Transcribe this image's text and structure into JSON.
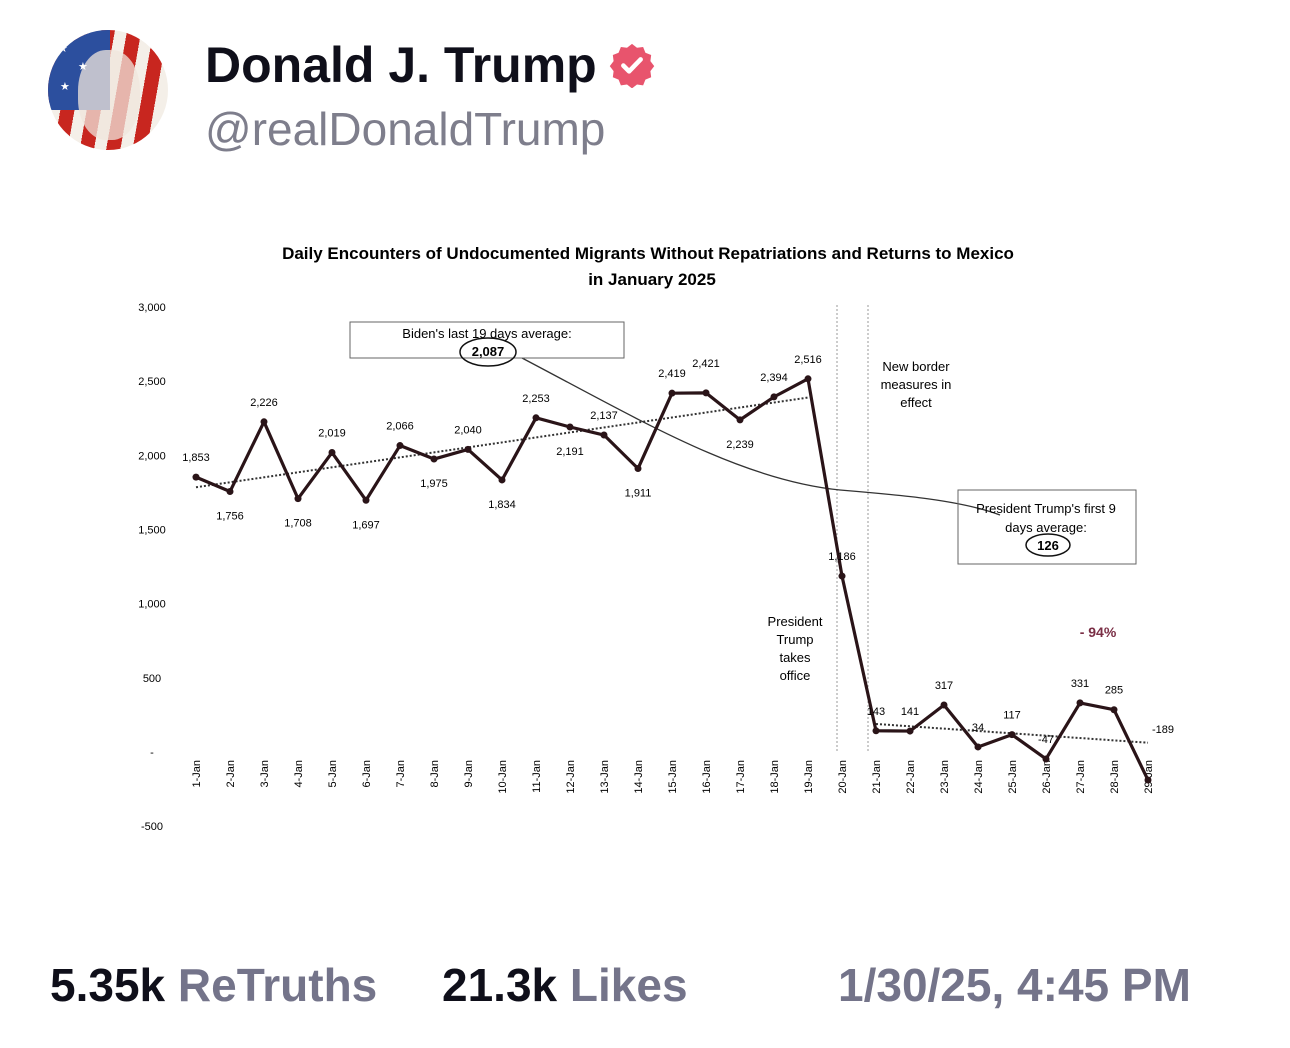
{
  "post": {
    "author_name": "Donald J. Trump",
    "handle": "@realDonaldTrump",
    "verified": true,
    "badge_color": "#e8546d",
    "retruths_count": "5.35k",
    "retruths_label": "ReTruths",
    "likes_count": "21.3k",
    "likes_label": "Likes",
    "timestamp": "1/30/25, 4:45 PM"
  },
  "chart_data": {
    "type": "line",
    "title": "Daily Encounters of Undocumented Migrants Without Repatriations and Returns to Mexico",
    "subtitle": "in January 2025",
    "xlabel": "",
    "ylabel": "",
    "ylim": [
      -500,
      3000
    ],
    "yticks": [
      "3,000",
      "2,500",
      "2,000",
      "1,500",
      "1,000",
      "500",
      "-",
      "-500"
    ],
    "categories": [
      "1-Jan",
      "2-Jan",
      "3-Jan",
      "4-Jan",
      "5-Jan",
      "6-Jan",
      "7-Jan",
      "8-Jan",
      "9-Jan",
      "10-Jan",
      "11-Jan",
      "12-Jan",
      "13-Jan",
      "14-Jan",
      "15-Jan",
      "16-Jan",
      "17-Jan",
      "18-Jan",
      "19-Jan",
      "20-Jan",
      "21-Jan",
      "22-Jan",
      "23-Jan",
      "24-Jan",
      "25-Jan",
      "26-Jan",
      "27-Jan",
      "28-Jan",
      "29-Jan"
    ],
    "values": [
      1853,
      1756,
      2226,
      1708,
      2019,
      1697,
      2066,
      1975,
      2040,
      1834,
      2253,
      2191,
      2137,
      1911,
      2419,
      2421,
      2239,
      2394,
      2516,
      1186,
      143,
      141,
      317,
      34,
      117,
      -47,
      331,
      285,
      -189
    ],
    "data_labels": [
      "1,853",
      "1,756",
      "2,226",
      "1,708",
      "2,019",
      "1,697",
      "2,066",
      "1,975",
      "2,040",
      "1,834",
      "2,253",
      "2,191",
      "2,137",
      "1,911",
      "2,419",
      "2,421",
      "2,239",
      "2,394",
      "2,516",
      "1,186",
      "143",
      "141",
      "317",
      "34",
      "117",
      "-47",
      "331",
      "285",
      "-189"
    ],
    "grid": false,
    "trendlines": [
      "dotted trend 1-Jan to 19-Jan",
      "dotted trend 21-Jan to 29-Jan"
    ],
    "annotations": {
      "biden_avg_label": "Biden's last 19 days average:",
      "biden_avg_value": "2,087",
      "trump_avg_label_1": "President Trump's first 9",
      "trump_avg_label_2": "days average:",
      "trump_avg_value": "126",
      "border_1": "New border",
      "border_2": "measures in",
      "border_3": "effect",
      "office_1": "President",
      "office_2": "Trump",
      "office_3": "takes",
      "office_4": "office",
      "change": "- 94%",
      "change_color": "#7a2e45"
    }
  }
}
